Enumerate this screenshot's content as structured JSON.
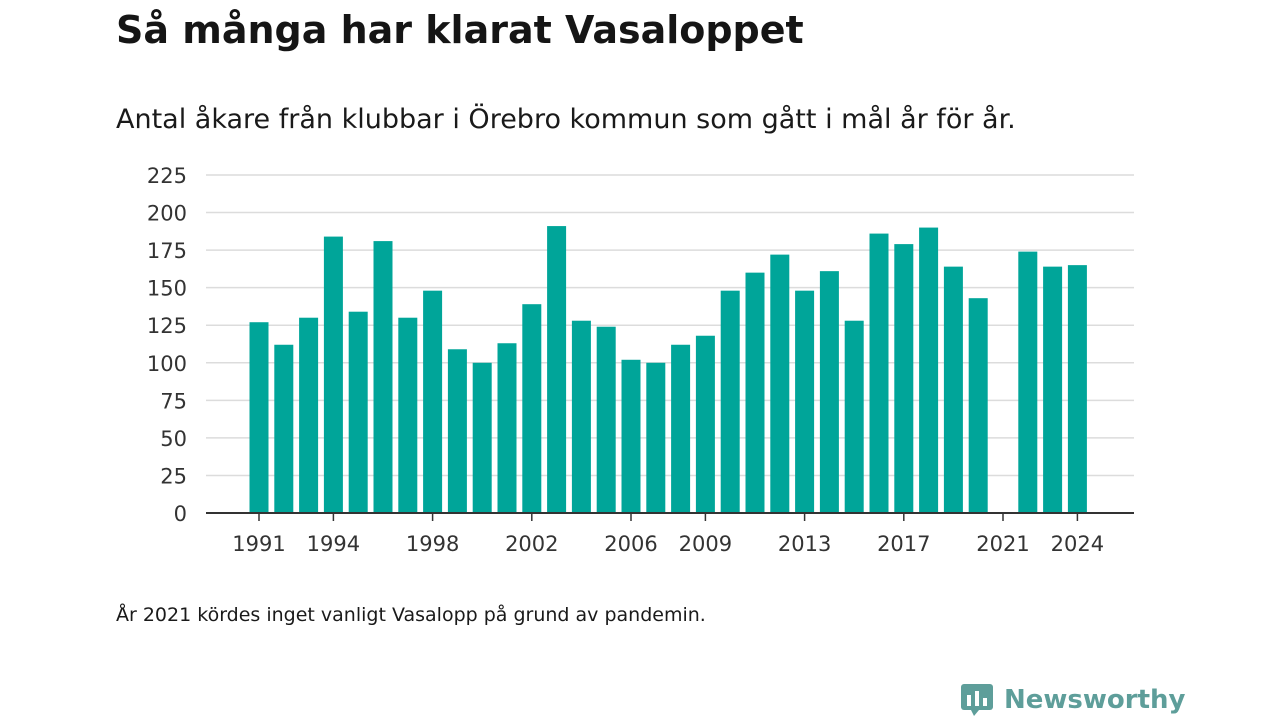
{
  "title": "Så många har klarat Vasaloppet",
  "subtitle": "Antal åkare från klubbar i Örebro kommun som gått i mål år för år.",
  "footnote": "År 2021 kördes inget vanligt Vasalopp på grund av pandemin.",
  "brand": {
    "name": "Newsworthy",
    "icon": "newsworthy-logo-icon"
  },
  "colors": {
    "bar": "#00a599",
    "grid": "#dcdcdc",
    "axis": "#333333",
    "brand": "#5e9e9a"
  },
  "chart_data": {
    "type": "bar",
    "title": "Så många har klarat Vasaloppet",
    "subtitle": "Antal åkare från klubbar i Örebro kommun som gått i mål år för år.",
    "xlabel": "",
    "ylabel": "",
    "categories": [
      1991,
      1992,
      1993,
      1994,
      1995,
      1996,
      1997,
      1998,
      1999,
      2000,
      2001,
      2002,
      2003,
      2004,
      2005,
      2006,
      2007,
      2008,
      2009,
      2010,
      2011,
      2012,
      2013,
      2014,
      2015,
      2016,
      2017,
      2018,
      2019,
      2020,
      2021,
      2022,
      2023,
      2024
    ],
    "values": [
      127,
      112,
      130,
      184,
      134,
      181,
      130,
      148,
      109,
      100,
      113,
      139,
      191,
      128,
      124,
      102,
      100,
      112,
      118,
      148,
      160,
      172,
      148,
      161,
      128,
      186,
      179,
      190,
      164,
      143,
      null,
      174,
      164,
      165
    ],
    "x_tick_labels": [
      "1991",
      "1994",
      "1998",
      "2002",
      "2006",
      "2009",
      "2013",
      "2017",
      "2021",
      "2024"
    ],
    "y_ticks": [
      0,
      25,
      50,
      75,
      100,
      125,
      150,
      175,
      200,
      225
    ],
    "ylim": [
      0,
      225
    ],
    "grid": true,
    "legend": "none"
  }
}
